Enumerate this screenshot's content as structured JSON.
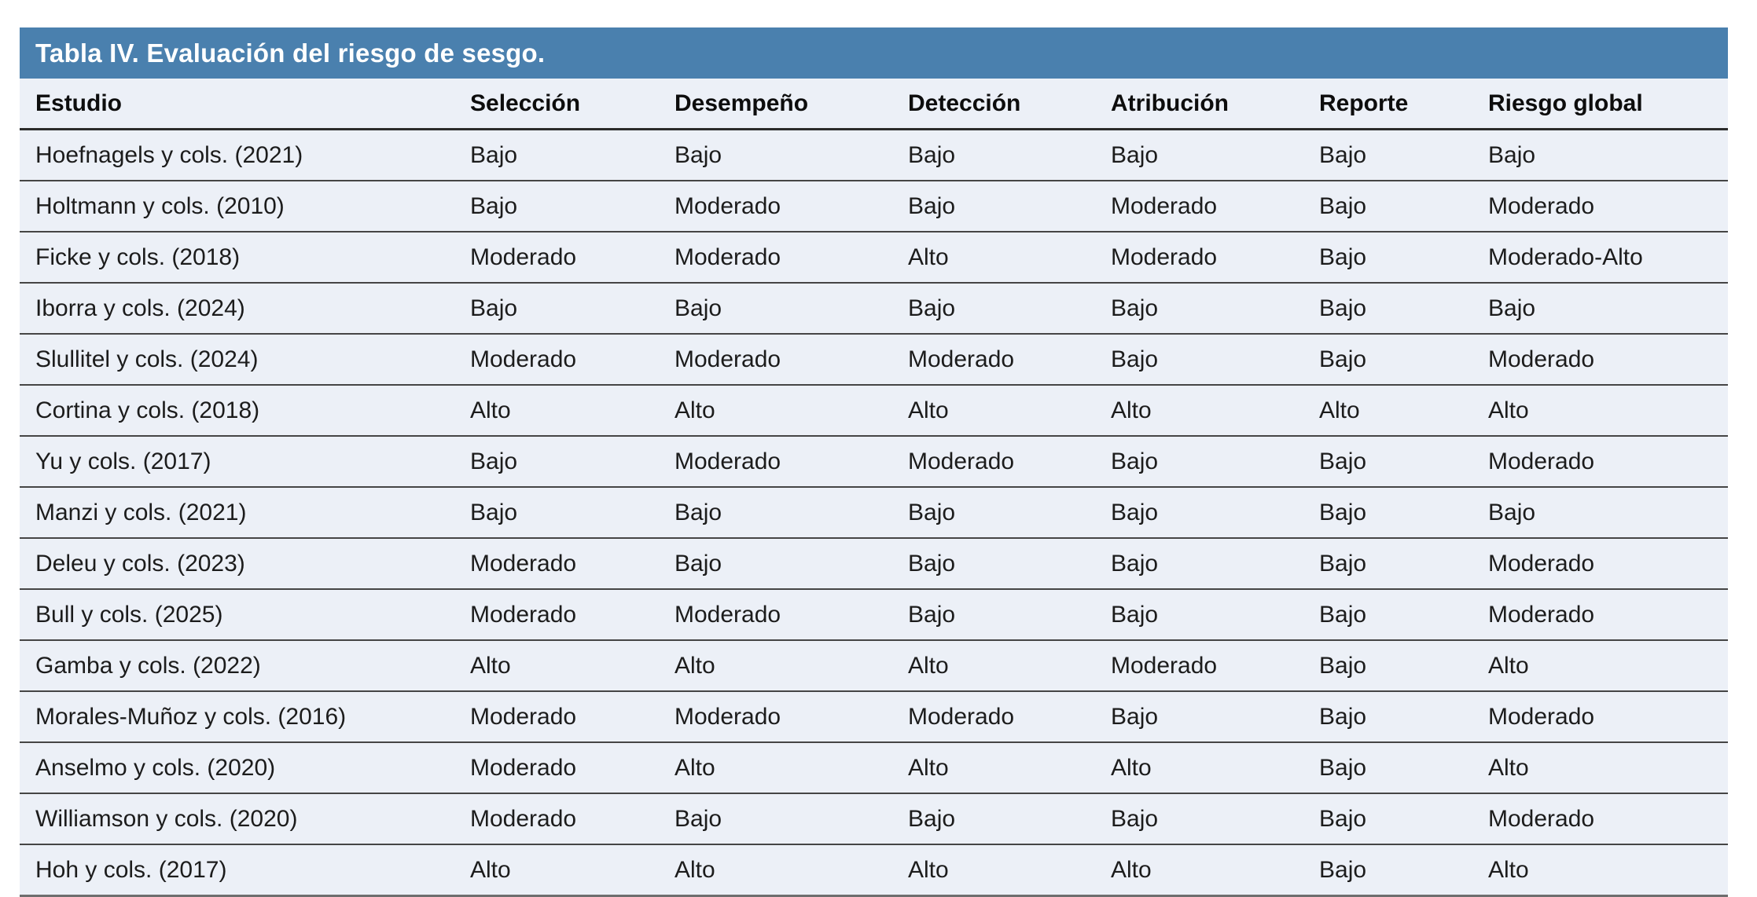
{
  "table": {
    "title": "Tabla IV. Evaluación del riesgo de sesgo.",
    "colors": {
      "header_bg": "#4A80AE",
      "row_bg": "#ECF0F7"
    },
    "columns": [
      "Estudio",
      "Selección",
      "Desempeño",
      "Detección",
      "Atribución",
      "Reporte",
      "Riesgo global"
    ],
    "rows": [
      {
        "cells": [
          "Hoefnagels y cols. (2021)",
          "Bajo",
          "Bajo",
          "Bajo",
          "Bajo",
          "Bajo",
          "Bajo"
        ]
      },
      {
        "cells": [
          "Holtmann y cols. (2010)",
          "Bajo",
          "Moderado",
          "Bajo",
          "Moderado",
          "Bajo",
          "Moderado"
        ]
      },
      {
        "cells": [
          "Ficke y cols. (2018)",
          "Moderado",
          "Moderado",
          "Alto",
          "Moderado",
          "Bajo",
          "Moderado-Alto"
        ]
      },
      {
        "cells": [
          "Iborra y cols. (2024)",
          "Bajo",
          "Bajo",
          "Bajo",
          "Bajo",
          "Bajo",
          "Bajo"
        ]
      },
      {
        "cells": [
          "Slullitel y cols. (2024)",
          "Moderado",
          "Moderado",
          "Moderado",
          "Bajo",
          "Bajo",
          "Moderado"
        ]
      },
      {
        "cells": [
          "Cortina y cols. (2018)",
          "Alto",
          "Alto",
          "Alto",
          "Alto",
          "Alto",
          "Alto"
        ]
      },
      {
        "cells": [
          "Yu y cols. (2017)",
          "Bajo",
          "Moderado",
          "Moderado",
          "Bajo",
          "Bajo",
          "Moderado"
        ]
      },
      {
        "cells": [
          "Manzi y cols. (2021)",
          "Bajo",
          "Bajo",
          "Bajo",
          "Bajo",
          "Bajo",
          "Bajo"
        ]
      },
      {
        "cells": [
          "Deleu y cols. (2023)",
          "Moderado",
          "Bajo",
          "Bajo",
          "Bajo",
          "Bajo",
          "Moderado"
        ]
      },
      {
        "cells": [
          "Bull y cols. (2025)",
          "Moderado",
          "Moderado",
          "Bajo",
          "Bajo",
          "Bajo",
          "Moderado"
        ]
      },
      {
        "cells": [
          "Gamba y cols. (2022)",
          "Alto",
          "Alto",
          "Alto",
          "Moderado",
          "Bajo",
          "Alto"
        ]
      },
      {
        "cells": [
          "Morales-Muñoz y cols. (2016)",
          "Moderado",
          "Moderado",
          "Moderado",
          "Bajo",
          "Bajo",
          "Moderado"
        ]
      },
      {
        "cells": [
          "Anselmo y cols. (2020)",
          "Moderado",
          "Alto",
          "Alto",
          "Alto",
          "Bajo",
          "Alto"
        ]
      },
      {
        "cells": [
          "Williamson y cols. (2020)",
          "Moderado",
          "Bajo",
          "Bajo",
          "Bajo",
          "Bajo",
          "Moderado"
        ]
      },
      {
        "cells": [
          "Hoh y cols. (2017)",
          "Alto",
          "Alto",
          "Alto",
          "Alto",
          "Bajo",
          "Alto"
        ]
      }
    ]
  }
}
